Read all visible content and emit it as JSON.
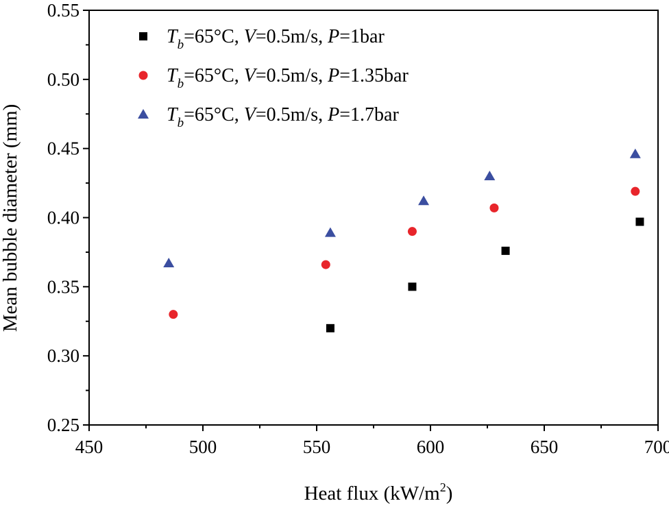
{
  "chart_data": {
    "type": "scatter",
    "title": "",
    "xlabel": "Heat flux (kW/m²)",
    "ylabel": "Mean bubble diameter (mm)",
    "xlim": [
      450,
      700
    ],
    "ylim": [
      0.25,
      0.55
    ],
    "x_ticks": [
      "450",
      "500",
      "550",
      "600",
      "650",
      "700"
    ],
    "y_ticks": [
      "0.25",
      "0.30",
      "0.35",
      "0.40",
      "0.45",
      "0.50",
      "0.55"
    ],
    "grid": false,
    "legend_position": "top-left",
    "series": [
      {
        "name": "Tb=65°C, V=0.5m/s, P=1bar",
        "marker": "square",
        "color": "#000000",
        "x": [
          556,
          592,
          633,
          692
        ],
        "y": [
          0.32,
          0.35,
          0.376,
          0.397
        ]
      },
      {
        "name": "Tb=65°C, V=0.5m/s, P=1.35bar",
        "marker": "circle",
        "color": "#e8252b",
        "x": [
          487,
          554,
          592,
          628,
          690
        ],
        "y": [
          0.33,
          0.366,
          0.39,
          0.407,
          0.419
        ]
      },
      {
        "name": "Tb=65°C, V=0.5m/s, P=1.7bar",
        "marker": "triangle",
        "color": "#3b4ea0",
        "x": [
          485,
          556,
          597,
          626,
          690
        ],
        "y": [
          0.367,
          0.389,
          0.412,
          0.43,
          0.446
        ]
      }
    ]
  }
}
